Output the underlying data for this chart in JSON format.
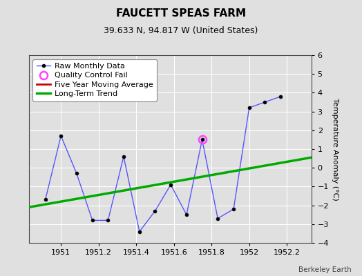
{
  "title": "FAUCETT SPEAS FARM",
  "subtitle": "39.633 N, 94.817 W (United States)",
  "watermark": "Berkeley Earth",
  "ylabel": "Temperature Anomaly (°C)",
  "xlim": [
    1950.83,
    1952.33
  ],
  "ylim": [
    -4,
    6
  ],
  "yticks": [
    -4,
    -3,
    -2,
    -1,
    0,
    1,
    2,
    3,
    4,
    5,
    6
  ],
  "xticks": [
    1951,
    1951.2,
    1951.4,
    1951.6,
    1951.8,
    1952,
    1952.2
  ],
  "background_color": "#e0e0e0",
  "plot_bg_color": "#e0e0e0",
  "raw_x": [
    1950.917,
    1951.0,
    1951.083,
    1951.167,
    1951.25,
    1951.333,
    1951.417,
    1951.5,
    1951.583,
    1951.667,
    1951.75,
    1951.833,
    1951.917,
    1952.0,
    1952.083,
    1952.167
  ],
  "raw_y": [
    -1.7,
    1.7,
    -0.3,
    -2.8,
    -2.8,
    0.6,
    -3.4,
    -2.3,
    -0.9,
    -2.5,
    1.5,
    -2.7,
    -2.2,
    3.2,
    3.5,
    3.8
  ],
  "qc_fail_x": [
    1951.75
  ],
  "qc_fail_y": [
    1.5
  ],
  "trend_x": [
    1950.83,
    1952.33
  ],
  "trend_y": [
    -2.1,
    0.55
  ],
  "raw_line_color": "#5555ff",
  "raw_marker_color": "#000000",
  "qc_color": "#ff44ff",
  "trend_color": "#00aa00",
  "moving_avg_color": "#cc0000",
  "legend_labels": [
    "Raw Monthly Data",
    "Quality Control Fail",
    "Five Year Moving Average",
    "Long-Term Trend"
  ],
  "title_fontsize": 11,
  "subtitle_fontsize": 9,
  "ylabel_fontsize": 8,
  "tick_fontsize": 8,
  "legend_fontsize": 8
}
